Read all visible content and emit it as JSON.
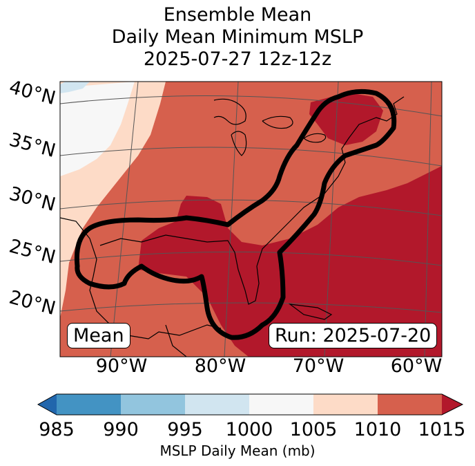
{
  "title": {
    "line1": "Ensemble Mean",
    "line2": "Daily Mean Minimum MSLP",
    "line3": "2025-07-27 12z-12z"
  },
  "latitude_labels": [
    "40°N",
    "35°N",
    "30°N",
    "25°N",
    "20°N"
  ],
  "longitude_labels": [
    "90°W",
    "80°W",
    "70°W",
    "60°W"
  ],
  "mean_label": "Mean",
  "run_label": "Run: 2025-07-20",
  "colorbar": {
    "ticks": [
      "985",
      "990",
      "995",
      "1000",
      "1005",
      "1010",
      "1015"
    ],
    "label": "MSLP Daily Mean (mb)",
    "colors": [
      "#2166ac",
      "#4393c3",
      "#92c5de",
      "#d1e5f0",
      "#f7f7f7",
      "#fddbc7",
      "#d6604d",
      "#b2182b"
    ]
  },
  "map_colors": {
    "light_blue": "#d1e5f0",
    "white": "#f7f7f7",
    "light_pink": "#fddbc7",
    "salmon": "#d6604d",
    "dark_red": "#b2182b"
  }
}
